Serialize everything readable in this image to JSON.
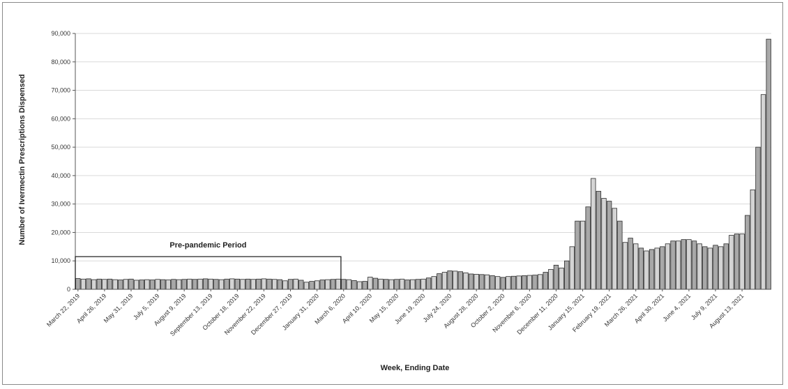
{
  "chart_data": {
    "type": "bar",
    "title": "",
    "xlabel": "Week, Ending Date",
    "ylabel": "Number of Ivermectin Prescriptions Dispensed",
    "ylim": [
      0,
      90000
    ],
    "yticks": [
      "0",
      "10,000",
      "20,000",
      "30,000",
      "40,000",
      "50,000",
      "60,000",
      "70,000",
      "80,000",
      "90,000"
    ],
    "grid": true,
    "legend": "none",
    "bar_color_dark": "#a8a8a8",
    "bar_color_light": "#d4d4d4",
    "bar_edge": "#2b2b2b",
    "annotation": {
      "label": "Pre-pandemic Period",
      "value": 11500,
      "from_week": 0,
      "to_week": 50
    },
    "xtick_labels": [
      {
        "week": 0,
        "label": "March 22, 2019"
      },
      {
        "week": 5,
        "label": "April 26, 2019"
      },
      {
        "week": 10,
        "label": "May 31, 2019"
      },
      {
        "week": 15,
        "label": "July 5, 2019"
      },
      {
        "week": 20,
        "label": "August 9, 2019"
      },
      {
        "week": 25,
        "label": "September 13, 2019"
      },
      {
        "week": 30,
        "label": "October 18, 2019"
      },
      {
        "week": 35,
        "label": "November 22, 2019"
      },
      {
        "week": 40,
        "label": "December 27, 2019"
      },
      {
        "week": 45,
        "label": "January 31, 2020"
      },
      {
        "week": 50,
        "label": "March 6, 2020"
      },
      {
        "week": 55,
        "label": "April 10, 2020"
      },
      {
        "week": 60,
        "label": "May 15, 2020"
      },
      {
        "week": 65,
        "label": "June 19, 2020"
      },
      {
        "week": 70,
        "label": "July 24, 2020"
      },
      {
        "week": 75,
        "label": "August 28, 2020"
      },
      {
        "week": 80,
        "label": "October 2, 2020"
      },
      {
        "week": 85,
        "label": "November 6, 2020"
      },
      {
        "week": 90,
        "label": "December 11, 2020"
      },
      {
        "week": 95,
        "label": "January 15, 2021"
      },
      {
        "week": 100,
        "label": "February 19, 2021"
      },
      {
        "week": 105,
        "label": "March 26, 2021"
      },
      {
        "week": 110,
        "label": "April 30, 2021"
      },
      {
        "week": 115,
        "label": "June 4, 2021"
      },
      {
        "week": 120,
        "label": "July 9, 2021"
      },
      {
        "week": 125,
        "label": "August 13, 2021"
      }
    ],
    "values": [
      3800,
      3600,
      3700,
      3400,
      3600,
      3500,
      3600,
      3400,
      3300,
      3500,
      3600,
      3200,
      3300,
      3400,
      3300,
      3500,
      3400,
      3300,
      3500,
      3400,
      3500,
      3600,
      3500,
      3600,
      3700,
      3600,
      3500,
      3400,
      3600,
      3700,
      3600,
      3500,
      3600,
      3500,
      3600,
      3700,
      3600,
      3500,
      3400,
      3000,
      3500,
      3600,
      3200,
      2500,
      2800,
      3000,
      3300,
      3400,
      3500,
      3600,
      3500,
      3400,
      3100,
      2700,
      2800,
      4300,
      3900,
      3600,
      3500,
      3400,
      3500,
      3600,
      3300,
      3400,
      3500,
      3600,
      4000,
      4500,
      5500,
      6000,
      6500,
      6400,
      6200,
      5800,
      5400,
      5300,
      5200,
      5100,
      4800,
      4500,
      4200,
      4500,
      4600,
      4700,
      4800,
      4900,
      5000,
      5200,
      6000,
      7000,
      8500,
      7500,
      10000,
      15000,
      24000,
      24000,
      29000,
      39000,
      34500,
      32000,
      31000,
      28500,
      24000,
      16500,
      18000,
      16000,
      14500,
      13500,
      14000,
      14500,
      15000,
      16000,
      17000,
      17000,
      17500,
      17500,
      17000,
      16000,
      15000,
      14500,
      15500,
      15000,
      16000,
      19000,
      19500,
      19500,
      26000,
      35000,
      50000,
      68500,
      88000
    ]
  }
}
